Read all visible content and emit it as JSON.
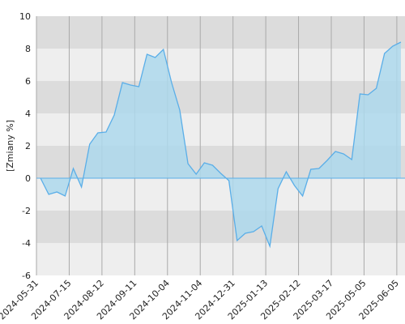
{
  "chart_data": {
    "type": "area",
    "ylabel": "[Zmiany %]",
    "x": [
      0,
      1,
      2,
      3,
      4,
      5,
      6,
      7,
      8,
      9,
      10,
      11,
      12,
      13,
      14,
      15,
      16,
      17,
      18,
      19,
      20,
      21,
      22,
      23,
      24,
      25,
      26,
      27,
      28,
      29,
      30,
      31,
      32,
      33,
      34,
      35,
      36,
      37,
      38,
      39,
      40,
      41,
      42,
      43,
      44
    ],
    "series": [
      {
        "name": null,
        "color": "#5aaee8",
        "fill": "#add8ec",
        "values": [
          0,
          -1,
          -0.85,
          -1.1,
          0.6,
          -0.55,
          2.1,
          2.8,
          2.85,
          3.9,
          5.9,
          5.75,
          5.65,
          7.65,
          7.45,
          7.95,
          5.9,
          4.2,
          0.9,
          0.25,
          0.95,
          0.8,
          0.3,
          -0.15,
          -3.85,
          -3.4,
          -3.3,
          -2.95,
          -4.2,
          -0.65,
          0.4,
          -0.45,
          -1.1,
          0.55,
          0.6,
          1.1,
          1.65,
          1.5,
          1.15,
          5.2,
          5.15,
          5.55,
          7.7,
          8.15,
          8.4
        ]
      }
    ],
    "xlim": [
      -0.5,
      44.5
    ],
    "xticks": [
      {
        "value": -0.5,
        "label": "2024-05-31"
      },
      {
        "value": 3.5,
        "label": "2024-07-15"
      },
      {
        "value": 7.5,
        "label": "2024-08-12"
      },
      {
        "value": 11.5,
        "label": "2024-09-11"
      },
      {
        "value": 15.5,
        "label": "2024-10-04"
      },
      {
        "value": 19.5,
        "label": "2024-11-04"
      },
      {
        "value": 23.5,
        "label": "2024-12-31"
      },
      {
        "value": 27.5,
        "label": "2025-01-13"
      },
      {
        "value": 31.5,
        "label": "2025-02-12"
      },
      {
        "value": 35.5,
        "label": "2025-03-17"
      },
      {
        "value": 39.5,
        "label": "2025-05-05"
      },
      {
        "value": 43.5,
        "label": "2025-06-05"
      }
    ],
    "ylim": [
      -6,
      10
    ],
    "yticks": [
      -6,
      -4,
      -2,
      0,
      2,
      4,
      6,
      8,
      10
    ],
    "grid": true
  }
}
